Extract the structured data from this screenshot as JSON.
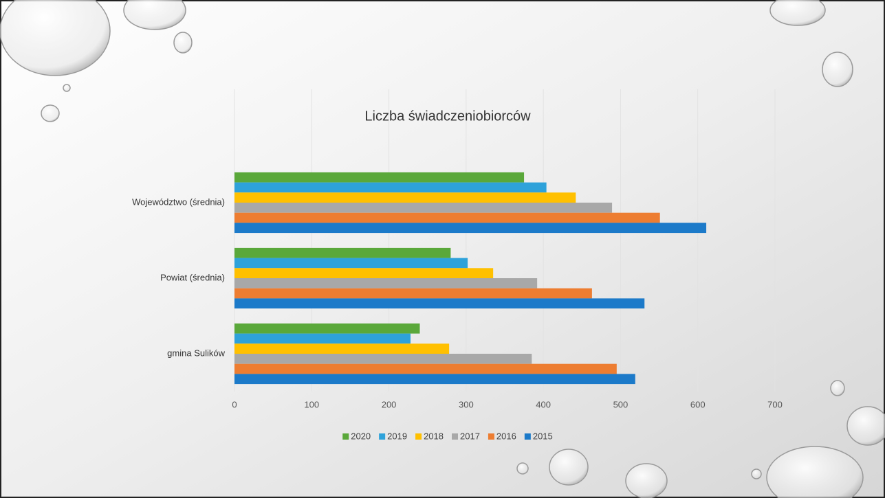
{
  "chart_data": {
    "type": "hbar",
    "title": "Liczba świadczeniobiorców",
    "categories": [
      "Województwo (średnia)",
      "Powiat (średnia)",
      "gmina Sulików"
    ],
    "series": [
      {
        "name": "2020",
        "color": "#5aa83a",
        "values": [
          375,
          280,
          240
        ]
      },
      {
        "name": "2019",
        "color": "#2ea2da",
        "values": [
          404,
          302,
          228
        ]
      },
      {
        "name": "2018",
        "color": "#ffc000",
        "values": [
          442,
          335,
          278
        ]
      },
      {
        "name": "2017",
        "color": "#a8a8a8",
        "values": [
          489,
          392,
          385
        ]
      },
      {
        "name": "2016",
        "color": "#ed7d31",
        "values": [
          551,
          463,
          495
        ]
      },
      {
        "name": "2015",
        "color": "#1c7ac9",
        "values": [
          611,
          531,
          519
        ]
      }
    ],
    "xlim": [
      0,
      700
    ],
    "xticks": [
      0,
      100,
      200,
      300,
      400,
      500,
      600,
      700
    ],
    "grid": true
  }
}
